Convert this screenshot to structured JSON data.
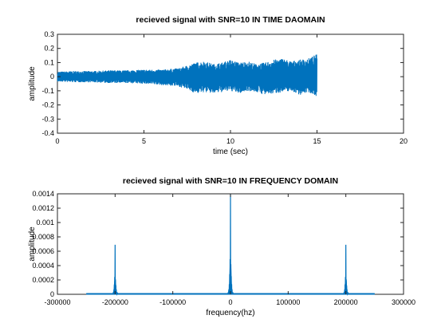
{
  "chart_data": [
    {
      "type": "line",
      "title": "recieved signal with SNR=10 IN TIME DAOMAIN",
      "xlabel": "time (sec)",
      "ylabel": "amplitude",
      "xlim": [
        0,
        20
      ],
      "ylim": [
        -0.4,
        0.3
      ],
      "xticks": [
        "0",
        "5",
        "10",
        "15",
        "20"
      ],
      "yticks": [
        "-0.4",
        "-0.3",
        "-0.2",
        "-0.1",
        "0",
        "0.1",
        "0.2",
        "0.3"
      ],
      "grid": false,
      "color": "#0072bd",
      "envelope": {
        "t": [
          0,
          1,
          2,
          3,
          4,
          5,
          6,
          7,
          7.5,
          8,
          8.5,
          9,
          9.5,
          10,
          10.5,
          11,
          11.5,
          12,
          12.5,
          13,
          13.5,
          14,
          14.5,
          15
        ],
        "upper": [
          0.035,
          0.04,
          0.04,
          0.045,
          0.045,
          0.05,
          0.05,
          0.06,
          0.08,
          0.1,
          0.11,
          0.09,
          0.1,
          0.12,
          0.1,
          0.11,
          0.09,
          0.1,
          0.12,
          0.13,
          0.11,
          0.12,
          0.13,
          0.16
        ],
        "lower": [
          -0.035,
          -0.04,
          -0.04,
          -0.045,
          -0.045,
          -0.05,
          -0.06,
          -0.07,
          -0.09,
          -0.12,
          -0.11,
          -0.12,
          -0.11,
          -0.1,
          -0.12,
          -0.1,
          -0.11,
          -0.13,
          -0.12,
          -0.11,
          -0.1,
          -0.13,
          -0.11,
          -0.14
        ]
      }
    },
    {
      "type": "line",
      "title": "recieved signal with SNR=10 IN FREQUENCY DOMAIN",
      "xlabel": "frequency(hz)",
      "ylabel": "amplitude",
      "xlim": [
        -300000,
        300000
      ],
      "ylim": [
        0,
        0.0014
      ],
      "xticks": [
        "-300000",
        "-200000",
        "-100000",
        "0",
        "100000",
        "200000",
        "300000"
      ],
      "yticks": [
        "0",
        "0.0002",
        "0.0004",
        "0.0006",
        "0.0008",
        "0.001",
        "0.0012",
        "0.0014"
      ],
      "grid": false,
      "color": "#0072bd",
      "spectrum_range": [
        -250000,
        250000
      ],
      "peaks": [
        {
          "x": -200000,
          "y": 0.00069
        },
        {
          "x": 0,
          "y": 0.0014
        },
        {
          "x": 200000,
          "y": 0.00069
        }
      ]
    }
  ]
}
